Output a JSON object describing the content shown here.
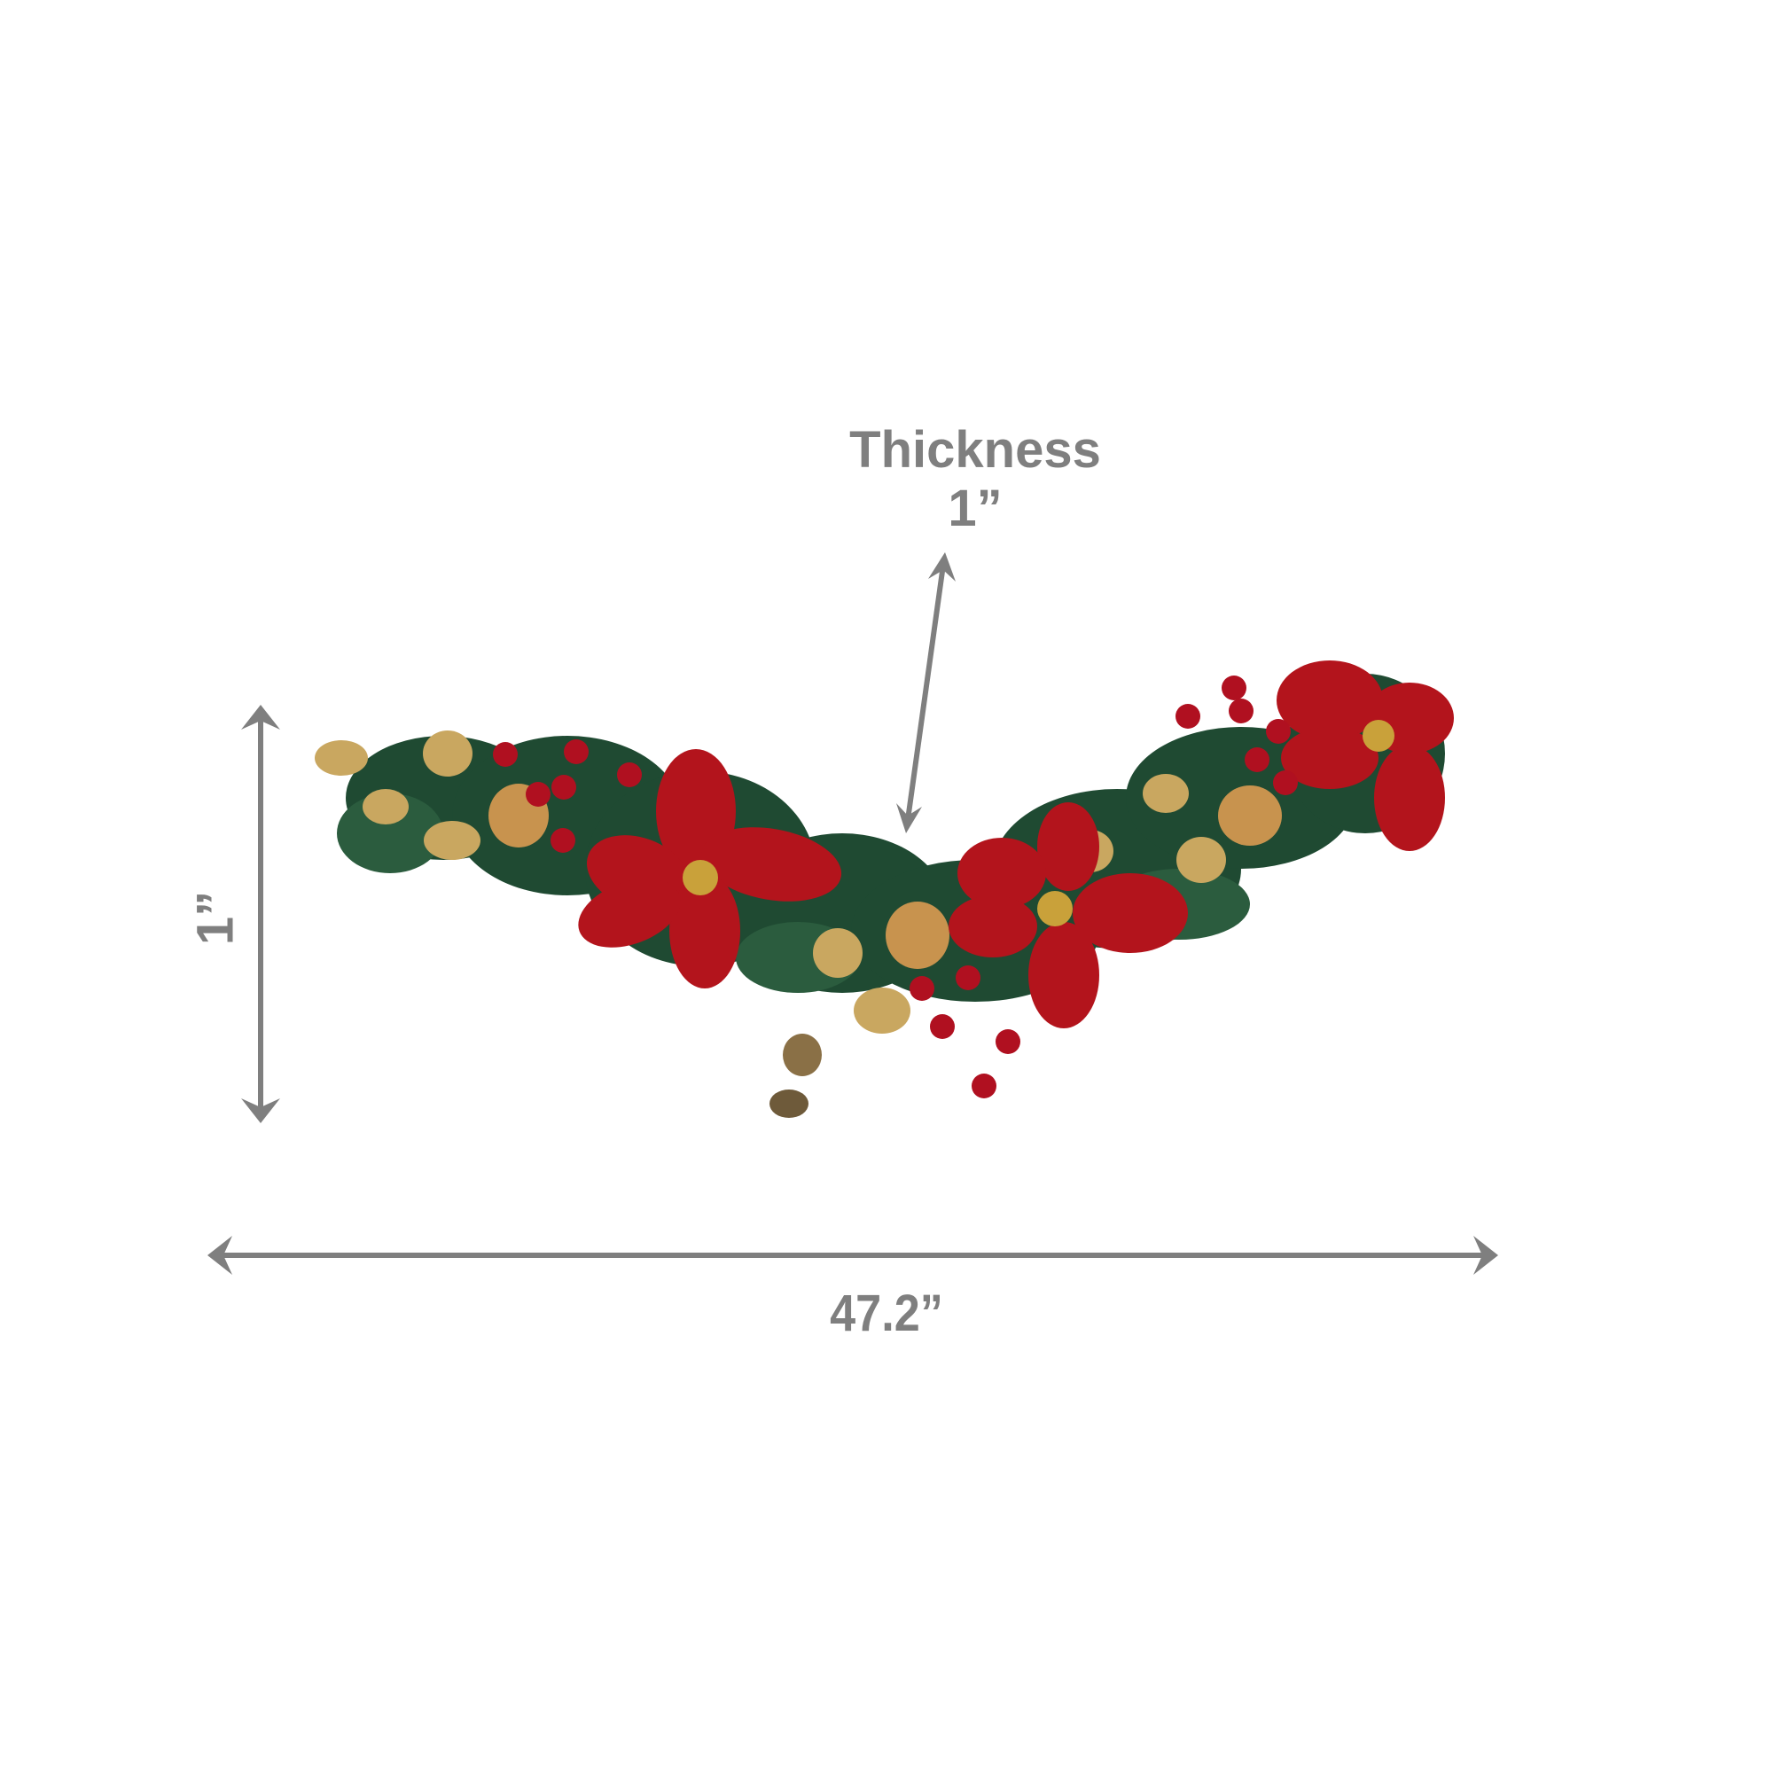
{
  "dimensions": {
    "thickness_label": "Thickness",
    "thickness_value": "1”",
    "width_value": "47.2”",
    "height_value": "1”"
  },
  "colors": {
    "annotation": "#7f7f7f",
    "pine": "#1f4a32",
    "poinsettia": "#b3141c",
    "berry": "#b01020",
    "gold": "#c9a760"
  },
  "product": {
    "image": "christmas-garland-swag-with-poinsettias"
  }
}
